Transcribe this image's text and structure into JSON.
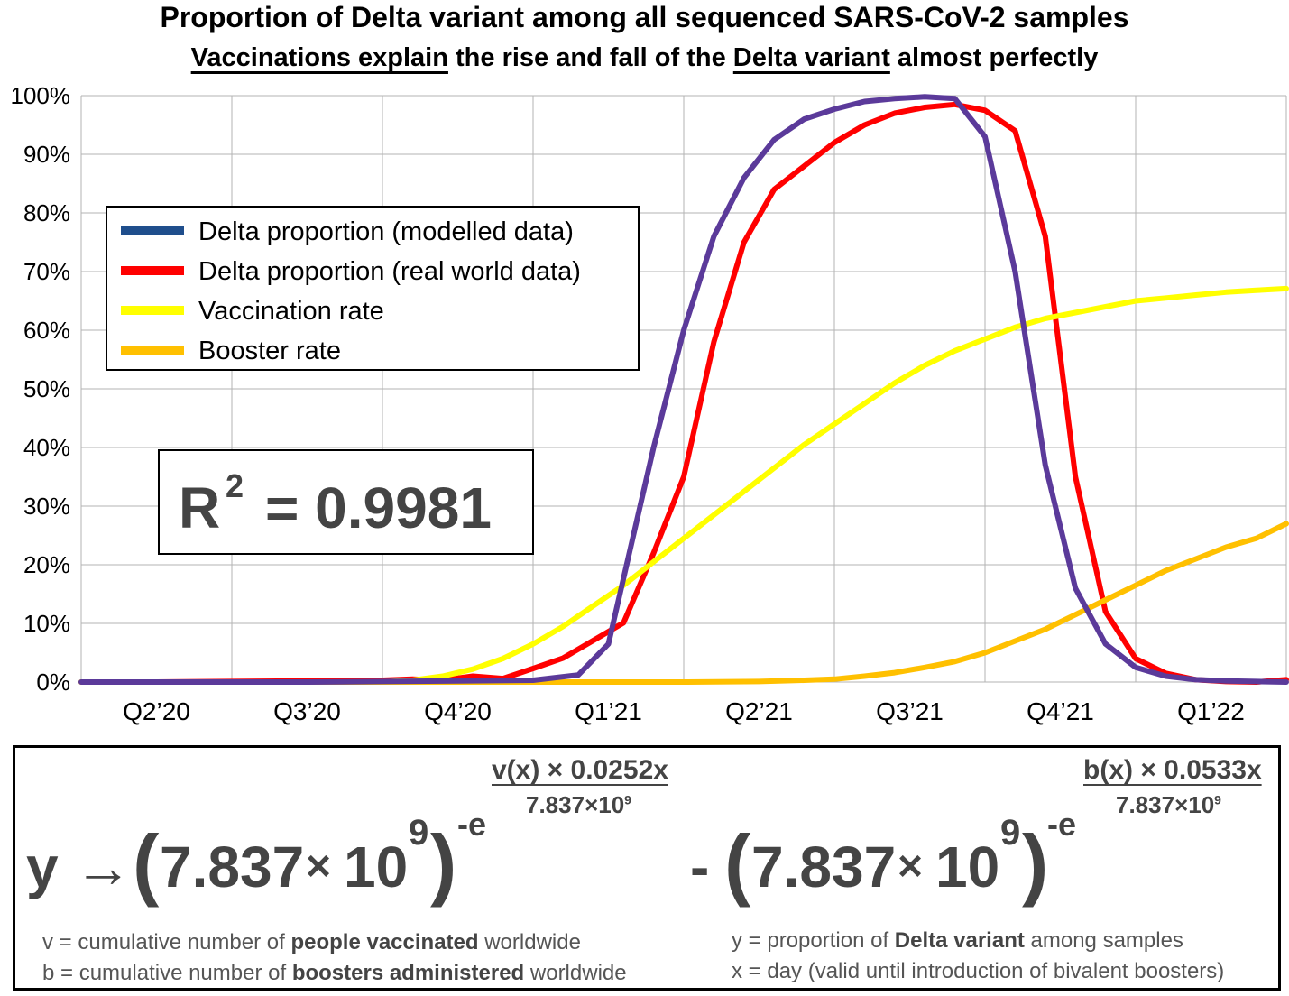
{
  "header": {
    "title": "Proportion of Delta variant among all sequenced SARS-CoV-2 samples",
    "subtitle_part1": "Vaccinations explain",
    "subtitle_part2": " the rise and fall of the ",
    "subtitle_part3": "Delta variant",
    "subtitle_part4": " almost perfectly"
  },
  "r2_box": {
    "label": "R",
    "sup": "2",
    "value": "= 0.9981"
  },
  "formula": {
    "y_arrow": "y →",
    "base": "7.837",
    "times": "×",
    "ten": "10",
    "exp9": "9",
    "neg_e": "-e",
    "frac1_top": "v(x) × 0.0252x",
    "frac1_bottom": "7.837×10",
    "frac1_bottom_exp": "9",
    "minus": "-",
    "frac2_top": "b(x) × 0.0533x",
    "frac2_bottom": "7.837×10",
    "frac2_bottom_exp": "9",
    "open_paren": "(",
    "close_paren": ")"
  },
  "notes": {
    "v_prefix": "v = cumulative number of ",
    "v_bold": "people vaccinated",
    "v_suffix": " worldwide",
    "b_prefix": "b = cumulative number of ",
    "b_bold": "boosters administered",
    "b_suffix": " worldwide",
    "y_prefix": "y = proportion of ",
    "y_bold": "Delta variant",
    "y_suffix": " among samples",
    "x_text": "x = day (valid until introduction of bivalent boosters)"
  },
  "chart_data": {
    "type": "line",
    "title": "Proportion of Delta variant among all sequenced SARS-CoV-2 samples",
    "x_tick_labels": [
      "Q2’20",
      "Q3’20",
      "Q4’20",
      "Q1’21",
      "Q2’21",
      "Q3’21",
      "Q4’21",
      "Q1’22"
    ],
    "x_range_quarters": [
      0,
      8
    ],
    "y_ticks": [
      0,
      10,
      20,
      30,
      40,
      50,
      60,
      70,
      80,
      90,
      100
    ],
    "y_tick_suffix": "%",
    "ylim": [
      0,
      100
    ],
    "grid": true,
    "legend_position": "top-left",
    "series": [
      {
        "name": "Delta proportion (modelled data)",
        "color": "#1f4e8c",
        "width": 6,
        "x": [],
        "y": []
      },
      {
        "name": "Delta proportion (real world data)",
        "color": "#ff0000",
        "width": 6,
        "x": [
          0,
          0.5,
          1,
          1.5,
          2,
          2.2,
          2.4,
          2.6,
          2.8,
          3.0,
          3.2,
          3.4,
          3.6,
          3.8,
          4.0,
          4.2,
          4.4,
          4.6,
          4.8,
          5.0,
          5.2,
          5.4,
          5.6,
          5.8,
          6.0,
          6.2,
          6.4,
          6.6,
          6.8,
          7.0,
          7.2,
          7.4,
          7.6,
          7.8,
          8.0
        ],
        "y": [
          0,
          0,
          0.1,
          0.2,
          0.3,
          0.5,
          0.3,
          1.0,
          0.6,
          2.3,
          4.1,
          7.1,
          10.1,
          22.0,
          35.0,
          58.0,
          75.0,
          84.0,
          88.0,
          92.0,
          95.0,
          97.0,
          98.0,
          98.5,
          97.5,
          94.0,
          76.0,
          35.0,
          12.0,
          4.0,
          1.5,
          0.4,
          0.1,
          0.0,
          0.4
        ],
        "note": "approximate real-world curve"
      },
      {
        "name": "Vaccination rate",
        "color": "#ffff00",
        "width": 6,
        "x": [
          0,
          1,
          2,
          2.2,
          2.4,
          2.6,
          2.8,
          3.0,
          3.2,
          3.4,
          3.6,
          3.8,
          4.0,
          4.2,
          4.4,
          4.6,
          4.8,
          5.0,
          5.2,
          5.4,
          5.6,
          5.8,
          6.0,
          6.2,
          6.4,
          6.6,
          6.8,
          7.0,
          7.2,
          7.4,
          7.6,
          7.8,
          8.0
        ],
        "y": [
          0,
          0,
          0,
          0.3,
          1.0,
          2.2,
          4.0,
          6.5,
          9.5,
          13.0,
          16.5,
          20.5,
          24.5,
          28.5,
          32.5,
          36.5,
          40.5,
          44.0,
          47.5,
          51.0,
          54.0,
          56.5,
          58.5,
          60.5,
          62.0,
          63.0,
          64.0,
          65.0,
          65.5,
          66.0,
          66.5,
          66.8,
          67.1
        ]
      },
      {
        "name": "Booster rate",
        "color": "#ffc000",
        "width": 6,
        "x": [
          0,
          3.3,
          3.5,
          4.0,
          4.5,
          4.8,
          5.0,
          5.2,
          5.4,
          5.6,
          5.8,
          6.0,
          6.2,
          6.4,
          6.6,
          6.8,
          7.0,
          7.2,
          7.4,
          7.6,
          7.8,
          8.0
        ],
        "y": [
          0,
          0,
          0,
          0,
          0.1,
          0.3,
          0.5,
          1.0,
          1.6,
          2.5,
          3.5,
          5.0,
          7.0,
          9.0,
          11.5,
          14.0,
          16.5,
          19.0,
          21.0,
          23.0,
          24.5,
          27.0
        ]
      },
      {
        "name": "",
        "color": "#5b3a9a",
        "width": 6,
        "x": [
          0,
          0.5,
          1,
          1.5,
          2,
          2.5,
          3.0,
          3.3,
          3.5,
          3.8,
          4.0,
          4.2,
          4.4,
          4.6,
          4.8,
          5.0,
          5.2,
          5.4,
          5.6,
          5.8,
          6.0,
          6.2,
          6.4,
          6.6,
          6.8,
          7.0,
          7.2,
          7.4,
          7.6,
          7.8,
          8.0
        ],
        "y": [
          0,
          0,
          0,
          0,
          0.1,
          0.2,
          0.3,
          1.2,
          6.5,
          40.0,
          60.0,
          76.0,
          86.0,
          92.5,
          96.0,
          97.7,
          99.0,
          99.5,
          99.8,
          99.5,
          93.0,
          70.0,
          37.0,
          16.0,
          6.5,
          2.5,
          1.0,
          0.4,
          0.2,
          0.1,
          0.0
        ],
        "note": "purple fitted curve overlaid (no legend entry)"
      }
    ],
    "legend_entries": [
      "Delta proportion (modelled data)",
      "Delta proportion (real world data)",
      "Vaccination rate",
      "Booster rate"
    ]
  }
}
